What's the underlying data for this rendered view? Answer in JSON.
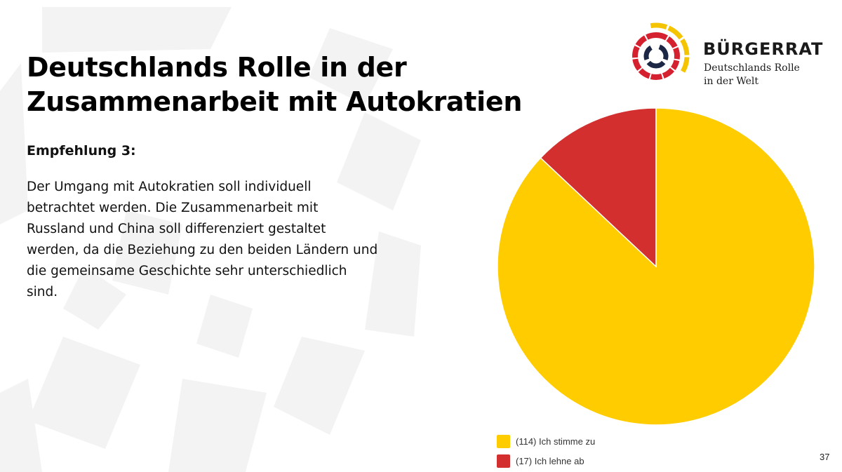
{
  "slide": {
    "title_lines": [
      "Deutschlands Rolle in der",
      "Zusammenarbeit mit Autokratien"
    ],
    "recommendation_heading": "Empfehlung 3:",
    "recommendation_lines": [
      "Der Umgang mit Autokratien soll individuell",
      "betrachtet werden. Die Zusammenarbeit mit",
      "Russland und China soll differenziert gestaltet",
      "werden, da die Beziehung zu den beiden Ländern und",
      "die gemeinsame Geschichte sehr unterschiedlich",
      "sind."
    ],
    "page_number": "37"
  },
  "logo": {
    "name": "BÜRGERRAT",
    "subtitle_lines": [
      "Deutschlands Rolle",
      "in der Welt"
    ],
    "colors": {
      "yellow": "#F5C400",
      "red": "#D5202F",
      "navy": "#1C2745"
    }
  },
  "chart_data": {
    "type": "pie",
    "title": "",
    "start_angle_deg": 0,
    "direction": "clockwise",
    "slices": [
      {
        "label": "Ich stimme zu",
        "value": 114,
        "color": "#FFCC00"
      },
      {
        "label": "Ich lehne ab",
        "value": 17,
        "color": "#D32F2F"
      }
    ],
    "legend": {
      "placement": "bottom",
      "entries": [
        "(114) Ich stimme zu",
        "(17) Ich lehne ab"
      ]
    }
  }
}
